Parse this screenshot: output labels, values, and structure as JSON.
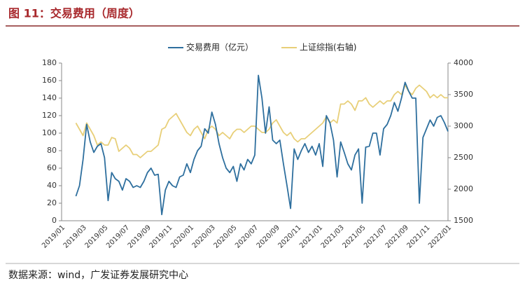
{
  "header": {
    "title": "图 11：交易费用（周度）"
  },
  "chart_data": {
    "type": "line",
    "categories": [
      "2019/01",
      null,
      null,
      null,
      null,
      null,
      "2019/03",
      null,
      null,
      null,
      null,
      null,
      "2019/05",
      null,
      null,
      null,
      null,
      null,
      "2019/07",
      null,
      null,
      null,
      null,
      null,
      "2019/09",
      null,
      null,
      null,
      null,
      null,
      "2019/11",
      null,
      null,
      null,
      null,
      null,
      "2020/01",
      null,
      null,
      null,
      null,
      null,
      "2020/03",
      null,
      null,
      null,
      null,
      null,
      "2020/05",
      null,
      null,
      null,
      null,
      null,
      "2020/07",
      null,
      null,
      null,
      null,
      null,
      "2020/09",
      null,
      null,
      null,
      null,
      null,
      "2020/11",
      null,
      null,
      null,
      null,
      null,
      "2021/01",
      null,
      null,
      null,
      null,
      null,
      "2021/03",
      null,
      null,
      null,
      null,
      null,
      "2021/05",
      null,
      null,
      null,
      null,
      null,
      "2021/07",
      null,
      null,
      null,
      null,
      null,
      "2021/09",
      null,
      null,
      null,
      null,
      null,
      "2021/11",
      null,
      null,
      null,
      null,
      null,
      "2022/01"
    ],
    "series": [
      {
        "name": "交易费用（亿元）",
        "color": "#2e6f9e",
        "axis": "y",
        "values": [
          null,
          null,
          null,
          null,
          28,
          40,
          70,
          110,
          90,
          78,
          85,
          88,
          72,
          23,
          55,
          48,
          45,
          35,
          48,
          45,
          38,
          40,
          38,
          45,
          55,
          60,
          52,
          53,
          7,
          35,
          45,
          40,
          38,
          50,
          52,
          65,
          55,
          70,
          80,
          85,
          105,
          100,
          124,
          110,
          88,
          72,
          60,
          55,
          62,
          45,
          65,
          58,
          70,
          65,
          75,
          166,
          140,
          100,
          130,
          92,
          88,
          92,
          65,
          40,
          14,
          82,
          70,
          80,
          88,
          78,
          85,
          75,
          88,
          62,
          120,
          112,
          92,
          50,
          90,
          78,
          65,
          58,
          75,
          82,
          20,
          84,
          85,
          100,
          100,
          75,
          105,
          110,
          120,
          135,
          125,
          140,
          158,
          148,
          140,
          140,
          20,
          95,
          105,
          115,
          108,
          118,
          120,
          112,
          102
        ]
      },
      {
        "name": "上证综指(右轴)",
        "color": "#e8cf78",
        "axis": "y2",
        "values": [
          null,
          null,
          null,
          null,
          3050,
          2950,
          2850,
          3050,
          2950,
          2850,
          2700,
          2750,
          2700,
          2700,
          2820,
          2800,
          2600,
          2650,
          2700,
          2650,
          2550,
          2550,
          2500,
          2550,
          2600,
          2600,
          2650,
          2700,
          2950,
          2980,
          3100,
          3150,
          3200,
          3100,
          3000,
          2900,
          2850,
          2950,
          3000,
          2900,
          2800,
          2950,
          3000,
          2950,
          2850,
          2900,
          2850,
          2800,
          2900,
          2950,
          2950,
          2900,
          2950,
          3000,
          3000,
          2950,
          2900,
          2900,
          2950,
          3050,
          3100,
          3000,
          2900,
          2850,
          2900,
          2800,
          2750,
          2800,
          2800,
          2850,
          2900,
          2950,
          3000,
          3050,
          3150,
          3050,
          3100,
          3050,
          3350,
          3350,
          3400,
          3350,
          3250,
          3400,
          3400,
          3450,
          3350,
          3300,
          3350,
          3400,
          3350,
          3400,
          3400,
          3500,
          3550,
          3500,
          3650,
          3550,
          3500,
          3600,
          3650,
          3600,
          3550,
          3450,
          3500,
          3450,
          3500,
          3450,
          3450
        ]
      }
    ],
    "ylim": [
      0,
      180
    ],
    "yticks": [
      0,
      20,
      40,
      60,
      80,
      100,
      120,
      140,
      160,
      180
    ],
    "y2lim": [
      1500,
      4000
    ],
    "y2ticks": [
      1500,
      2000,
      2500,
      3000,
      3500,
      4000
    ],
    "grid": false
  },
  "footer": {
    "source": "数据来源：wind，广发证券发展研究中心"
  }
}
